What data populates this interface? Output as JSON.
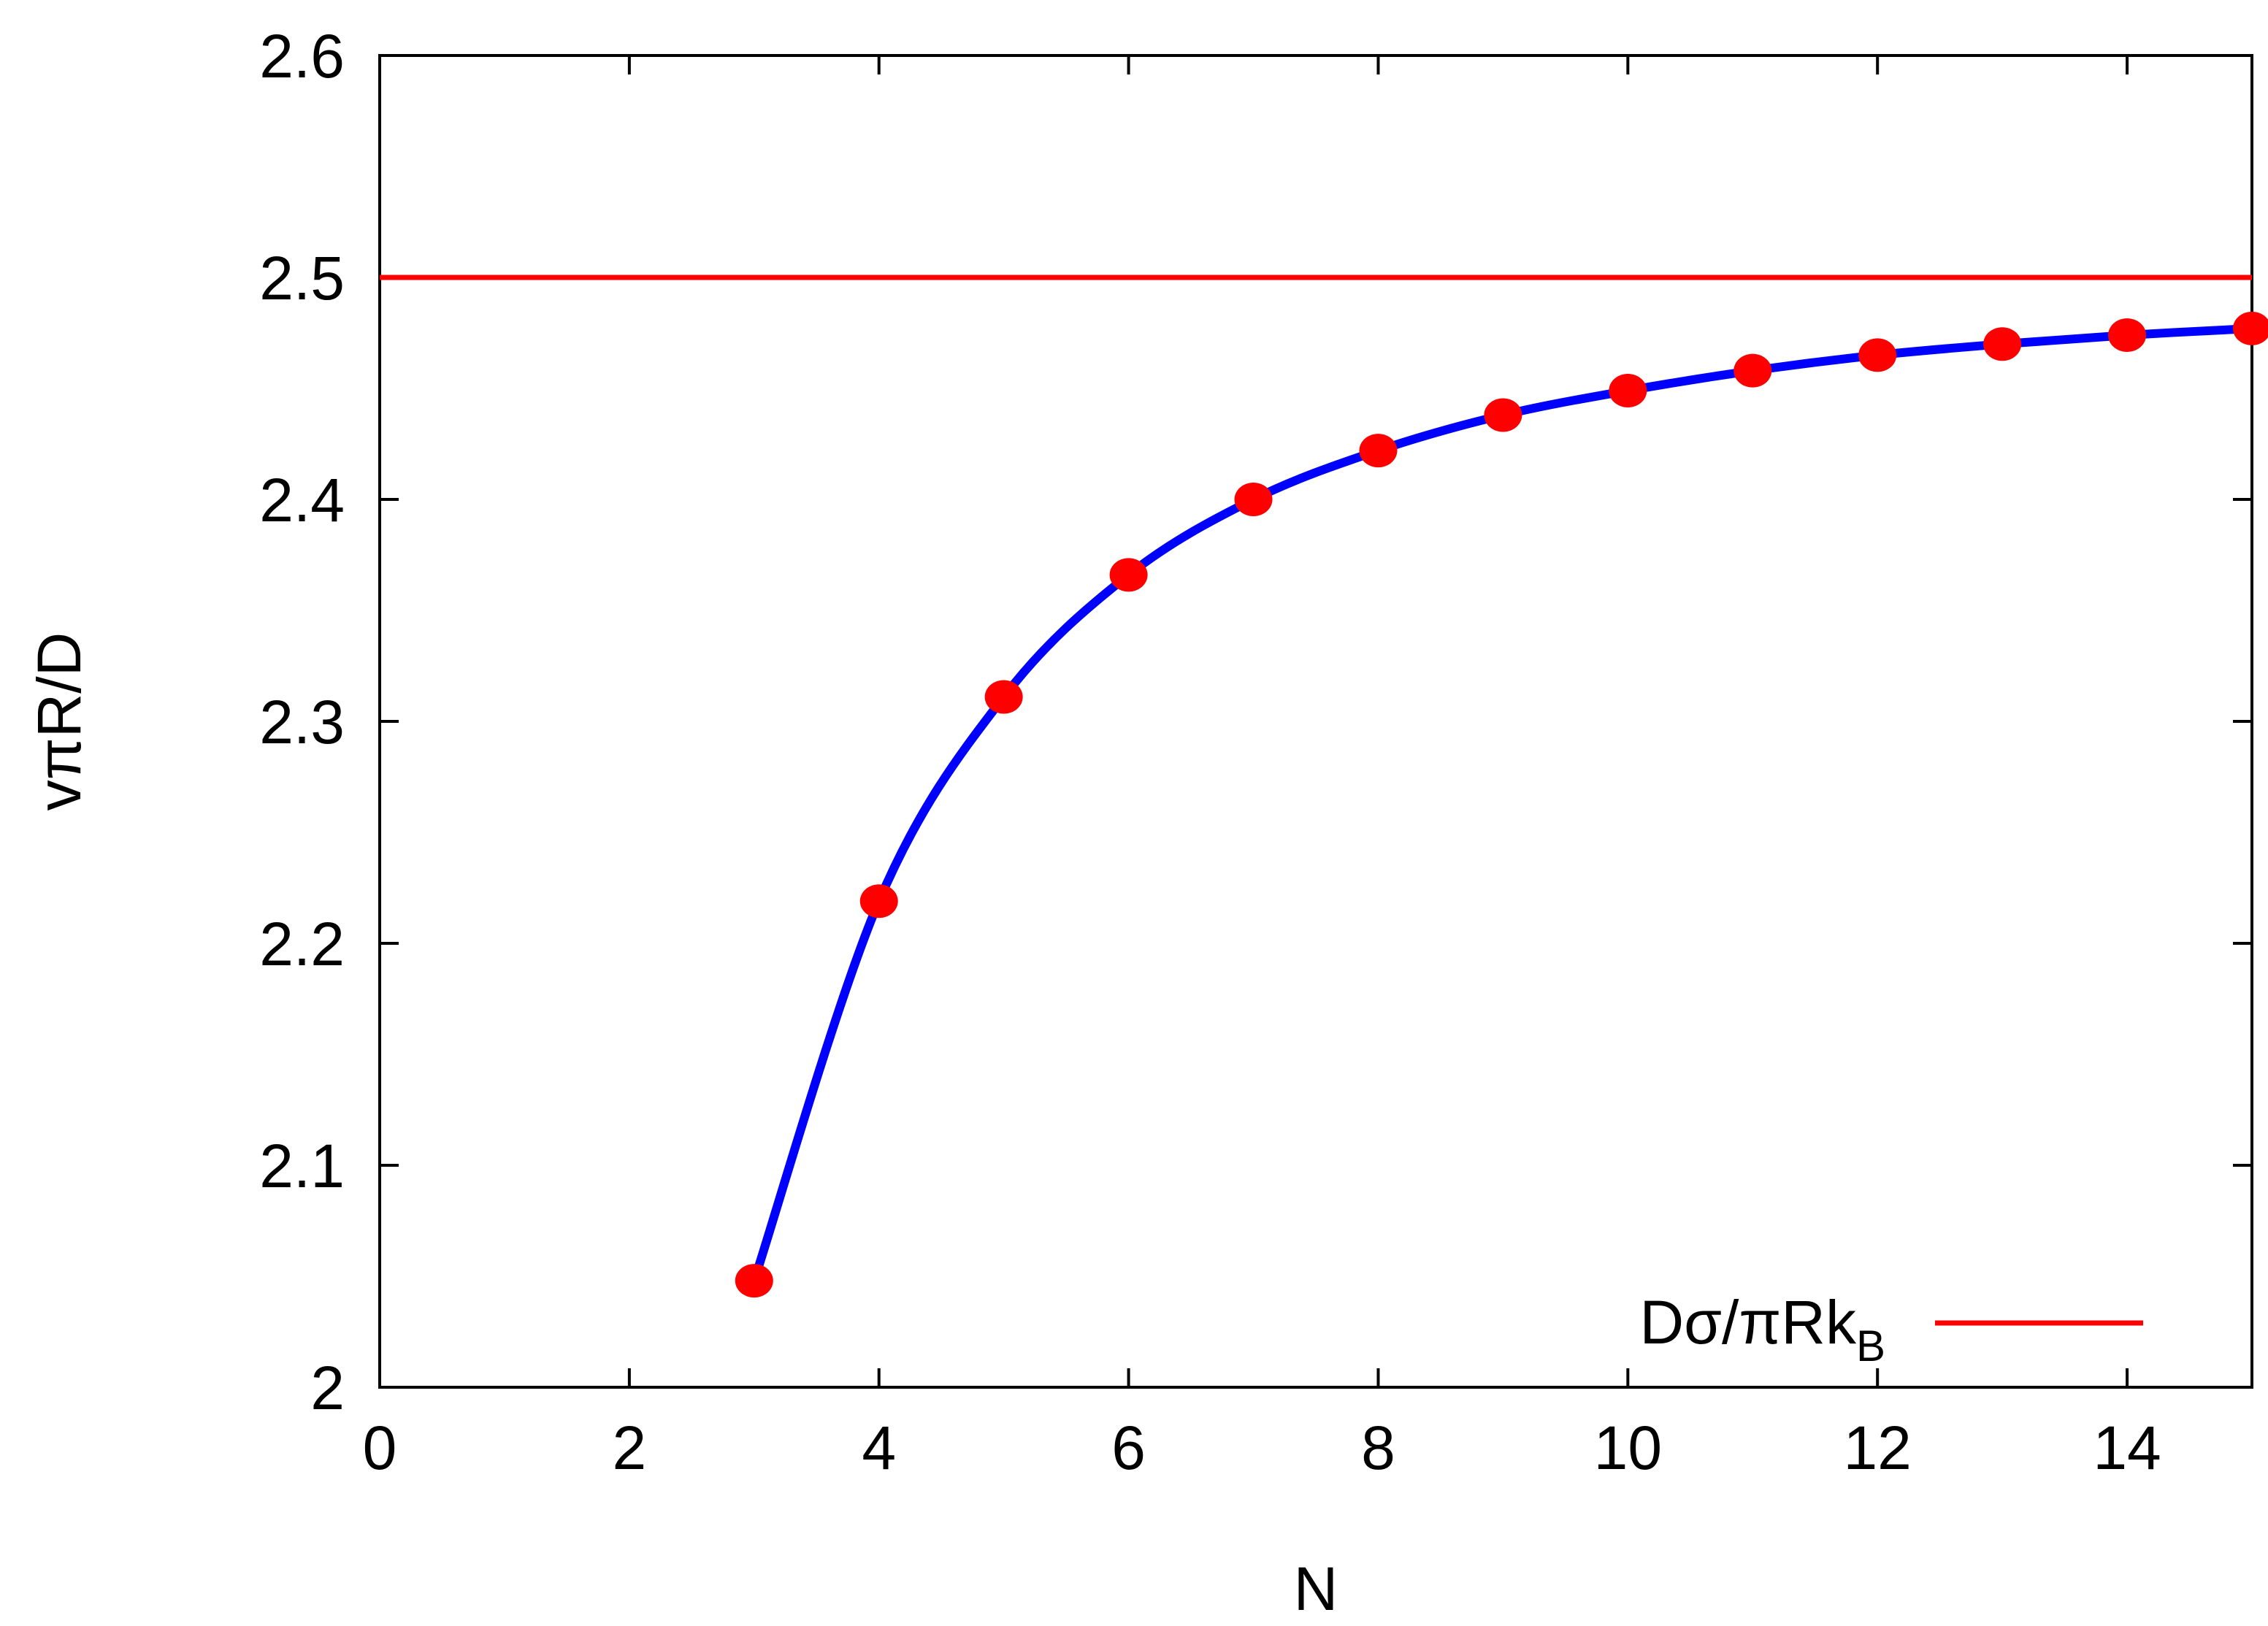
{
  "chart_data": {
    "type": "line",
    "xlabel": "N",
    "ylabel": "vπR/D",
    "xlim": [
      0,
      15
    ],
    "ylim": [
      2.0,
      2.6
    ],
    "x_ticks": [
      "0",
      "2",
      "4",
      "6",
      "8",
      "10",
      "12",
      "14"
    ],
    "y_ticks": [
      "2",
      "2.1",
      "2.2",
      "2.3",
      "2.4",
      "2.5",
      "2.6"
    ],
    "grid": false,
    "legend_position": "bottom-right",
    "series": [
      {
        "name": "Dσ/πRk",
        "name_subscript": "B",
        "kind": "horizontal-line",
        "color": "#ff0000",
        "y": 2.5
      },
      {
        "kind": "curve",
        "color": "#0000ff",
        "x": [
          3,
          4,
          5,
          6,
          7,
          8,
          9,
          10,
          11,
          12,
          13,
          14,
          15
        ],
        "y": [
          2.048,
          2.219,
          2.311,
          2.366,
          2.4,
          2.422,
          2.438,
          2.449,
          2.458,
          2.465,
          2.47,
          2.474,
          2.477
        ]
      },
      {
        "kind": "points",
        "color": "#ff0000",
        "x": [
          3,
          4,
          5,
          6,
          7,
          8,
          9,
          10,
          11,
          12,
          13,
          14,
          15
        ],
        "y": [
          2.048,
          2.219,
          2.311,
          2.366,
          2.4,
          2.422,
          2.438,
          2.449,
          2.458,
          2.465,
          2.47,
          2.474,
          2.477
        ]
      }
    ]
  }
}
